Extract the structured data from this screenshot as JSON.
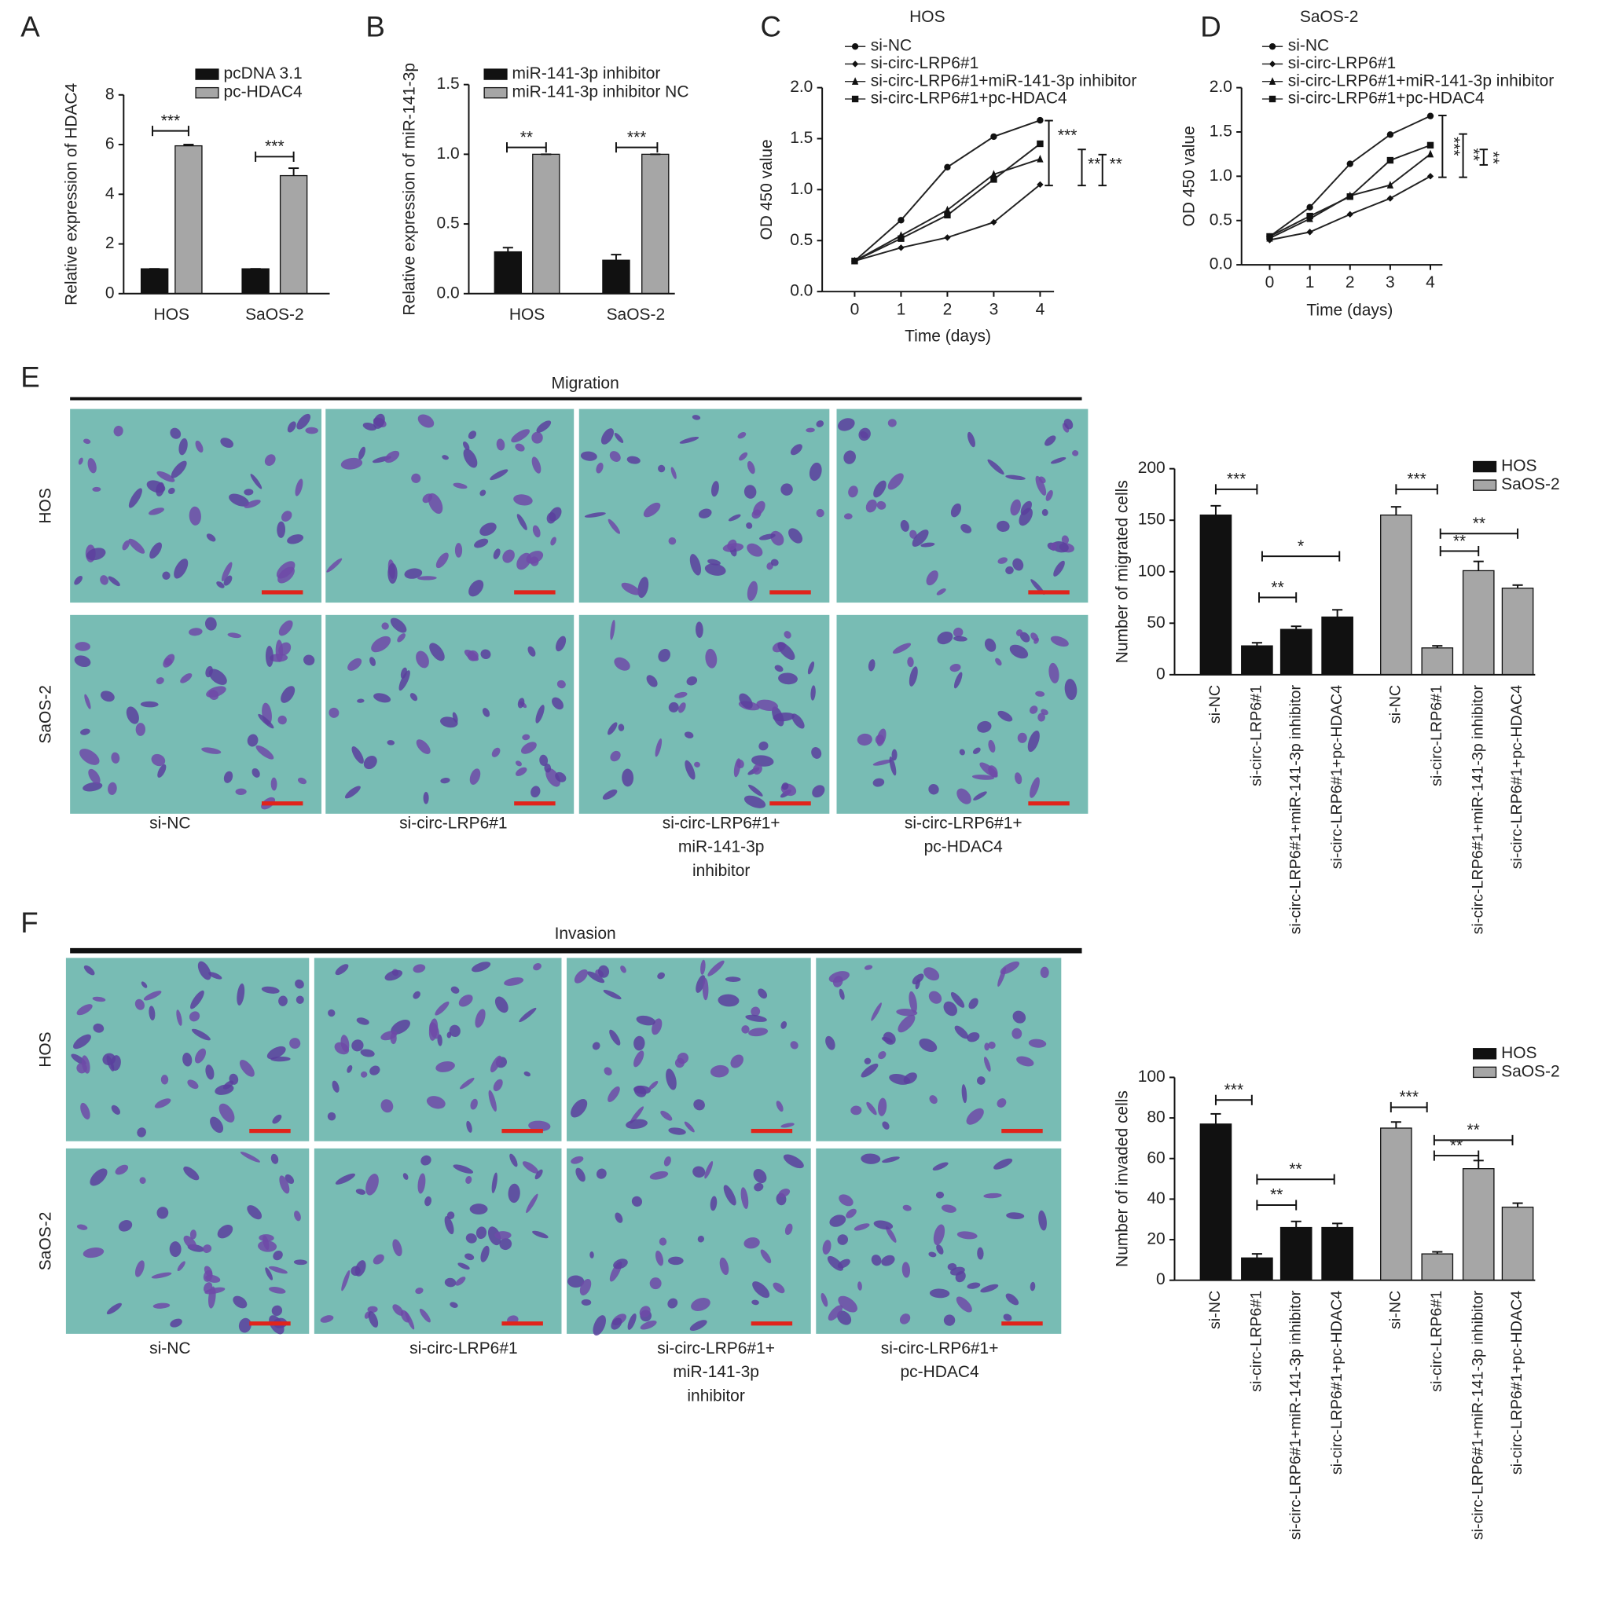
{
  "panels": [
    "A",
    "B",
    "C",
    "D",
    "E",
    "F"
  ],
  "chart_data": [
    {
      "type": "bar",
      "ylabel": "Relative expression of HDAC4",
      "categories": [
        "HOS",
        "SaOS-2"
      ],
      "series": [
        {
          "name": "pcDNA 3.1",
          "color": "#111111",
          "values": [
            1,
            1
          ],
          "errors": [
            0,
            0
          ]
        },
        {
          "name": "pc-HDAC4",
          "color": "#a6a6a6",
          "values": [
            5.95,
            4.75
          ],
          "errors": [
            0.05,
            0.3
          ]
        }
      ],
      "ylim": [
        0,
        8
      ],
      "yticks": [
        0,
        2,
        4,
        6,
        8
      ],
      "annotations": [
        "***",
        "***"
      ]
    },
    {
      "type": "bar",
      "ylabel": "Relative expression of miR-141-3p",
      "categories": [
        "HOS",
        "SaOS-2"
      ],
      "series": [
        {
          "name": "miR-141-3p inhibitor",
          "color": "#111111",
          "values": [
            0.3,
            0.24
          ],
          "errors": [
            0.03,
            0.04
          ]
        },
        {
          "name": "miR-141-3p inhibitor NC",
          "color": "#a6a6a6",
          "values": [
            1,
            1
          ],
          "errors": [
            0,
            0
          ]
        }
      ],
      "ylim": [
        0,
        1.5
      ],
      "yticks": [
        {
          "value": 0,
          "label": "0.0"
        },
        0.5,
        {
          "value": 1,
          "label": "1.0"
        },
        1.5
      ],
      "annotations": [
        "**",
        "***"
      ]
    },
    {
      "type": "line",
      "title": "HOS",
      "xlabel": "Time (days)",
      "ylabel": "OD 450 value",
      "x": [
        0,
        1,
        2,
        3,
        4
      ],
      "series": [
        {
          "name": "si-NC",
          "color": "#222222",
          "values": [
            0.3,
            0.7,
            1.22,
            1.52,
            1.68
          ]
        },
        {
          "name": "si-circ-LRP6#1",
          "color": "#222222",
          "values": [
            0.3,
            0.43,
            0.53,
            0.68,
            1.05
          ]
        },
        {
          "name": "si-circ-LRP6#1+miR-141-3p inhibitor",
          "color": "#222222",
          "values": [
            0.3,
            0.55,
            0.8,
            1.15,
            1.3
          ]
        },
        {
          "name": "si-circ-LRP6#1+pc-HDAC4",
          "color": "#222222",
          "values": [
            0.3,
            0.52,
            0.75,
            1.1,
            1.45
          ]
        }
      ],
      "xlim": [
        -0.7,
        4.3
      ],
      "xticks": [
        0,
        1,
        2,
        3,
        4
      ],
      "ylim": [
        0,
        2
      ],
      "yticks": [
        {
          "value": 0,
          "label": "0.0"
        },
        0.5,
        {
          "value": 1,
          "label": "1.0"
        },
        1.5,
        {
          "value": 2,
          "label": "2.0"
        }
      ],
      "annotations": [
        "***",
        "**",
        "**"
      ]
    },
    {
      "type": "line",
      "title": "SaOS-2",
      "xlabel": "Time (days)",
      "ylabel": "OD 450 value",
      "x": [
        0,
        1,
        2,
        3,
        4
      ],
      "series": [
        {
          "name": "si-NC",
          "color": "#222222",
          "values": [
            0.32,
            0.65,
            1.14,
            1.47,
            1.68
          ]
        },
        {
          "name": "si-circ-LRP6#1",
          "color": "#222222",
          "values": [
            0.28,
            0.37,
            0.57,
            0.75,
            1.0
          ]
        },
        {
          "name": "si-circ-LRP6#1+miR-141-3p inhibitor",
          "color": "#222222",
          "values": [
            0.3,
            0.52,
            0.78,
            0.9,
            1.25
          ]
        },
        {
          "name": "si-circ-LRP6#1+pc-HDAC4",
          "color": "#222222",
          "values": [
            0.32,
            0.55,
            0.77,
            1.18,
            1.35
          ]
        }
      ],
      "xlim": [
        -0.7,
        4.3
      ],
      "xticks": [
        0,
        1,
        2,
        3,
        4
      ],
      "ylim": [
        0,
        2
      ],
      "yticks": [
        {
          "value": 0,
          "label": "0.0"
        },
        0.5,
        {
          "value": 1,
          "label": "1.0"
        },
        1.5,
        {
          "value": 2,
          "label": "2.0"
        }
      ],
      "annotations": [
        "***",
        "**",
        "**"
      ]
    },
    {
      "type": "bar",
      "ylabel": "Number of migrated cells",
      "categories": [
        "si-NC",
        "si-circ-LRP6#1",
        "si-circ-LRP6#1+miR-141-3p inhibitor",
        "si-circ-LRP6#1+pc-HDAC4"
      ],
      "series": [
        {
          "name": "HOS",
          "color": "#111111",
          "values": [
            155,
            28,
            44,
            56
          ],
          "errors": [
            9,
            3,
            3,
            7
          ]
        },
        {
          "name": "SaOS-2",
          "color": "#a6a6a6",
          "values": [
            155,
            26,
            101,
            84
          ],
          "errors": [
            8,
            2,
            9,
            3
          ]
        }
      ],
      "ylim": [
        0,
        200
      ],
      "yticks": [
        0,
        50,
        100,
        150,
        200
      ],
      "annotations": [
        "***",
        "**",
        "*",
        "***",
        "**",
        "**"
      ]
    },
    {
      "type": "bar",
      "ylabel": "Number of invaded cells",
      "categories": [
        "si-NC",
        "si-circ-LRP6#1",
        "si-circ-LRP6#1+miR-141-3p inhibitor",
        "si-circ-LRP6#1+pc-HDAC4"
      ],
      "series": [
        {
          "name": "HOS",
          "color": "#111111",
          "values": [
            77,
            11,
            26,
            26
          ],
          "errors": [
            5,
            2,
            3,
            2
          ]
        },
        {
          "name": "SaOS-2",
          "color": "#a6a6a6",
          "values": [
            75,
            13,
            55,
            36
          ],
          "errors": [
            3,
            1,
            4,
            2
          ]
        }
      ],
      "ylim": [
        0,
        100
      ],
      "yticks": [
        0,
        20,
        40,
        60,
        80,
        100
      ],
      "annotations": [
        "***",
        "**",
        "**",
        "***",
        "**",
        "**"
      ]
    }
  ],
  "migration": {
    "title": "Migration",
    "rows": [
      "HOS",
      "SaOS-2"
    ],
    "captions": [
      [
        "si-NC"
      ],
      [
        "si-circ-LRP6#1"
      ],
      [
        "si-circ-LRP6#1+",
        "miR-141-3p",
        "inhibitor"
      ],
      [
        "si-circ-LRP6#1+",
        "pc-HDAC4"
      ]
    ]
  },
  "invasion": {
    "title": "Invasion",
    "rows": [
      "HOS",
      "SaOS-2"
    ],
    "captions": [
      [
        "si-NC"
      ],
      [
        "si-circ-LRP6#1"
      ],
      [
        "si-circ-LRP6#1+",
        "miR-141-3p",
        "inhibitor"
      ],
      [
        "si-circ-LRP6#1+",
        "pc-HDAC4"
      ]
    ]
  }
}
